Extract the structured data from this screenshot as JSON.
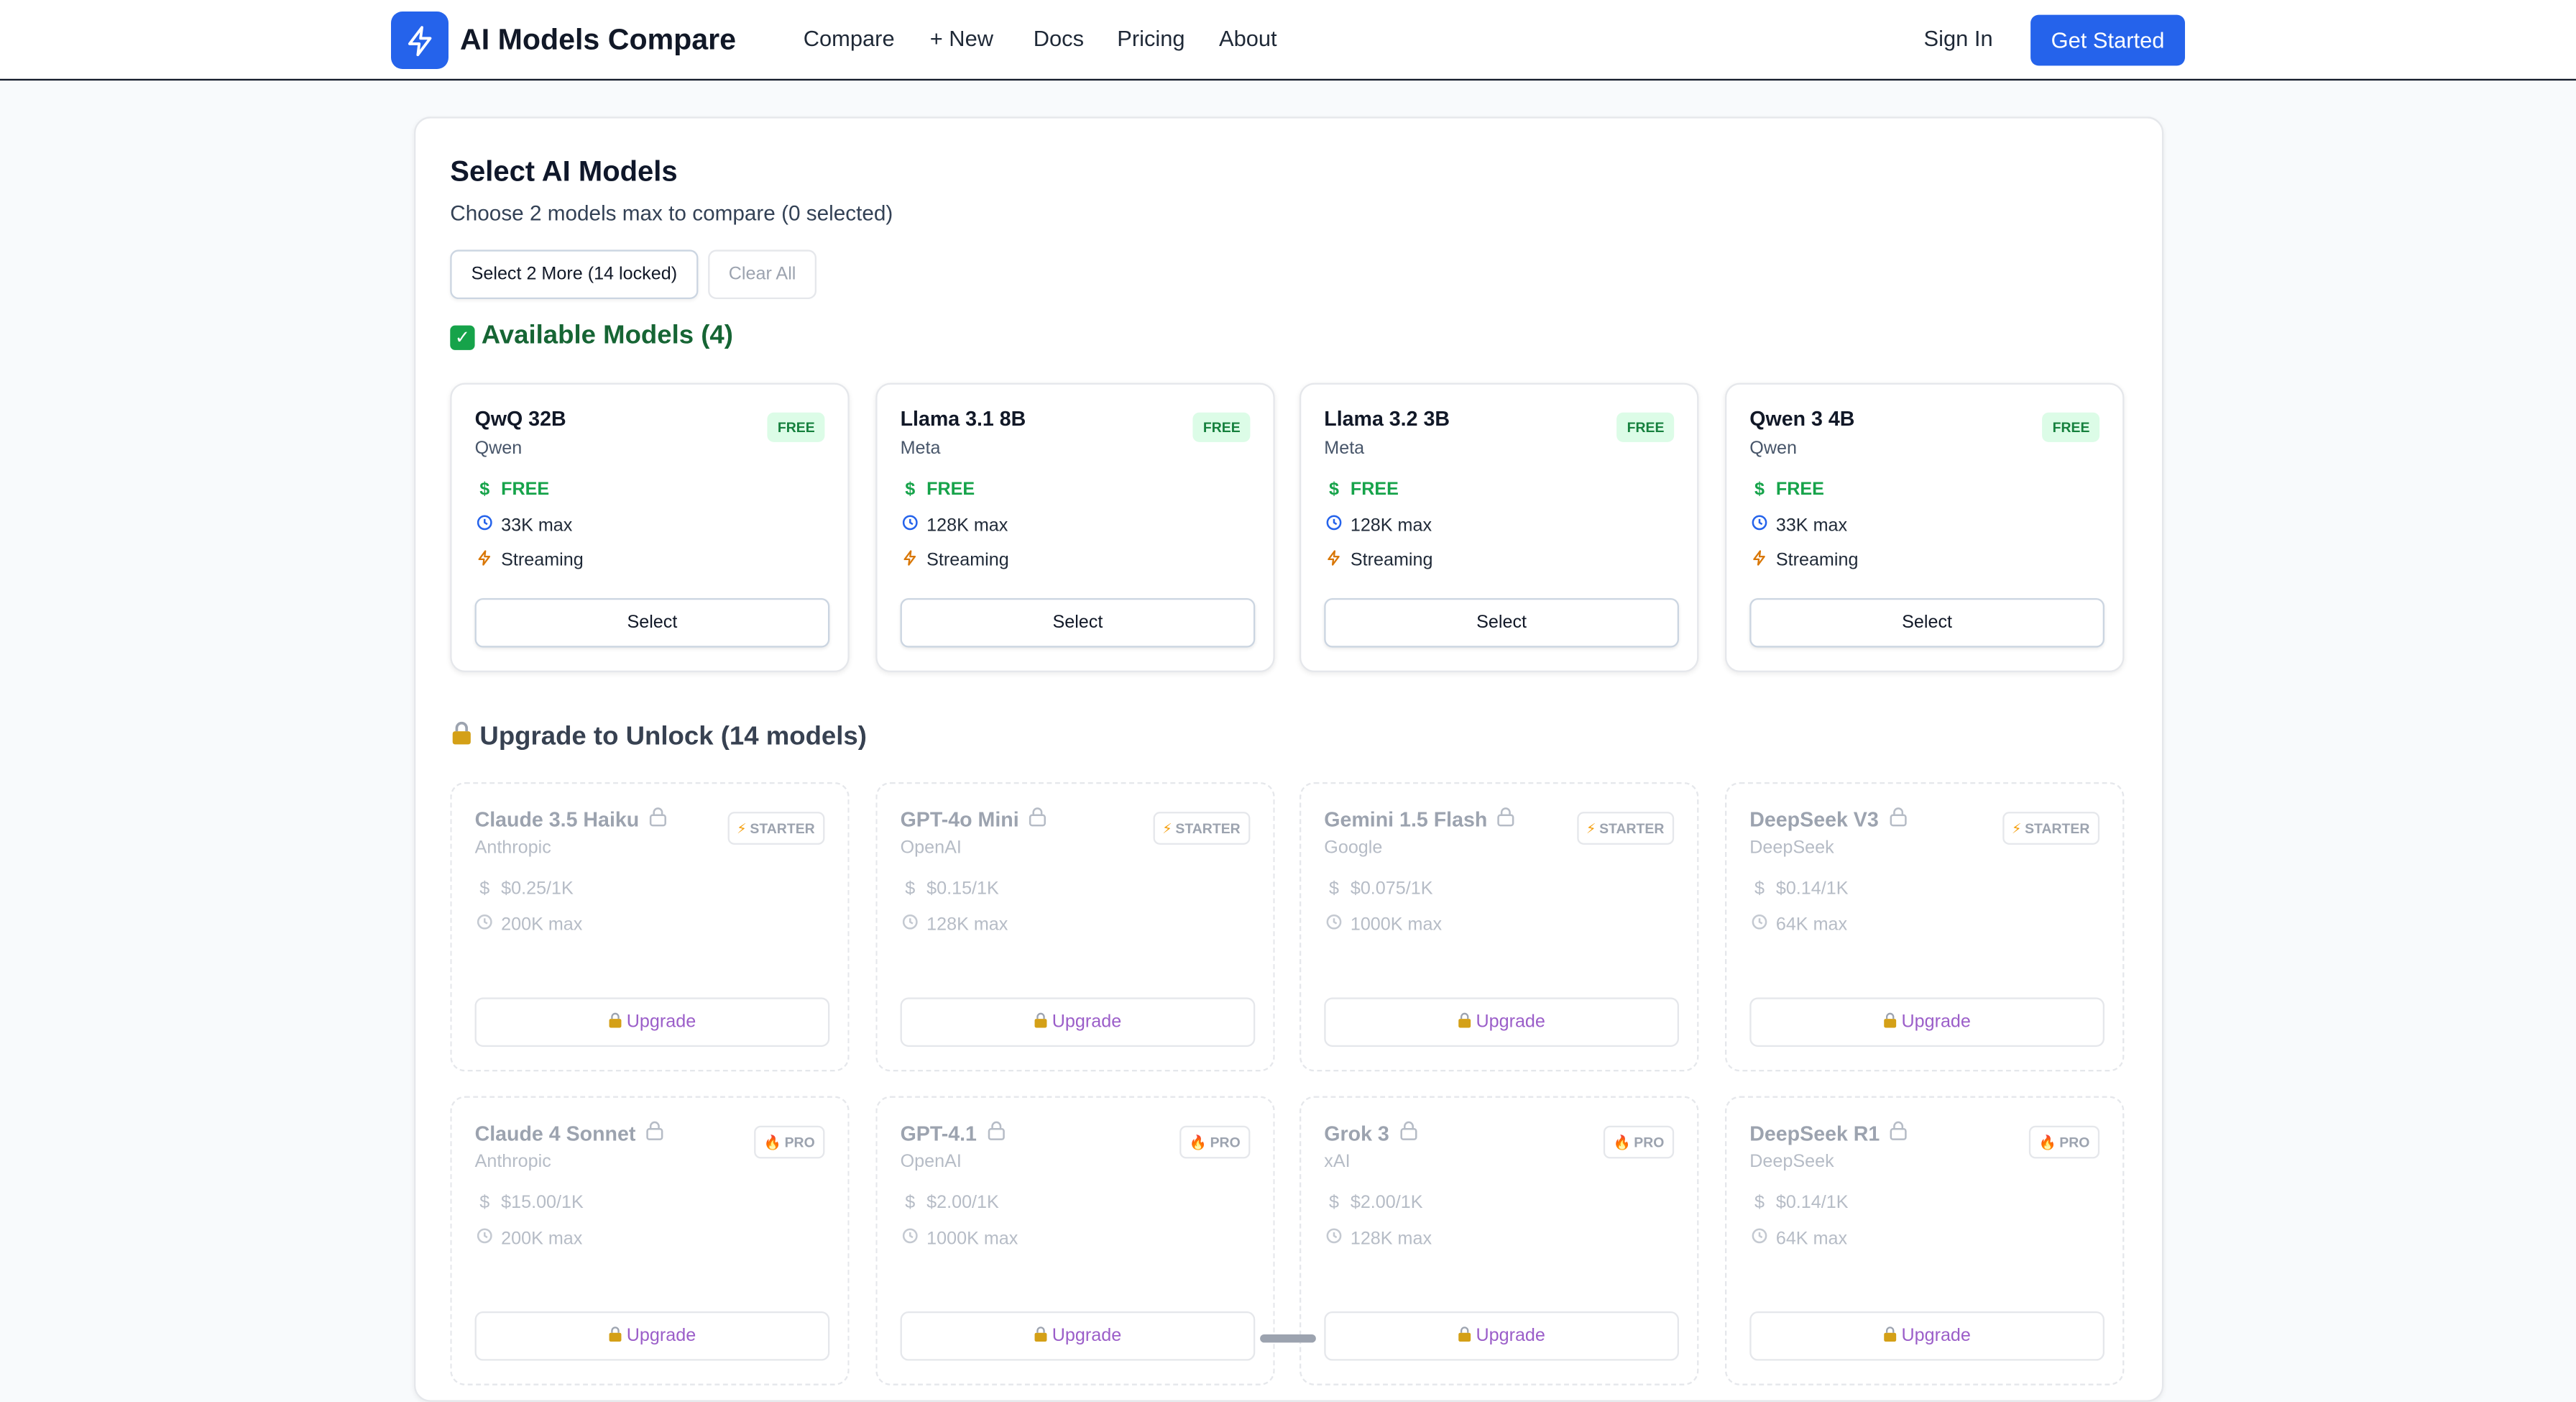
{
  "brand": {
    "name": "AI Models Compare"
  },
  "nav": {
    "compare": "Compare",
    "new": "+ New",
    "docs": "Docs",
    "pricing": "Pricing",
    "about": "About",
    "sign_in": "Sign In",
    "get_started": "Get Started"
  },
  "header": {
    "title": "Select AI Models",
    "subtitle": "Choose 2 models max to compare (0 selected)",
    "select_more": "Select 2 More (14 locked)",
    "clear_all": "Clear All"
  },
  "available": {
    "heading": "Available Models (4)",
    "models": [
      {
        "name": "QwQ 32B",
        "provider": "Qwen",
        "badge": "FREE",
        "price": "FREE",
        "context": "33K max",
        "feature": "Streaming",
        "button": "Select"
      },
      {
        "name": "Llama 3.1 8B",
        "provider": "Meta",
        "badge": "FREE",
        "price": "FREE",
        "context": "128K max",
        "feature": "Streaming",
        "button": "Select"
      },
      {
        "name": "Llama 3.2 3B",
        "provider": "Meta",
        "badge": "FREE",
        "price": "FREE",
        "context": "128K max",
        "feature": "Streaming",
        "button": "Select"
      },
      {
        "name": "Qwen 3 4B",
        "provider": "Qwen",
        "badge": "FREE",
        "price": "FREE",
        "context": "33K max",
        "feature": "Streaming",
        "button": "Select"
      }
    ]
  },
  "locked": {
    "heading": "Upgrade to Unlock (14 models)",
    "models": [
      {
        "name": "Claude 3.5 Haiku",
        "provider": "Anthropic",
        "badge": "STARTER",
        "price": "$0.25/1K",
        "context": "200K max",
        "button": "Upgrade"
      },
      {
        "name": "GPT-4o Mini",
        "provider": "OpenAI",
        "badge": "STARTER",
        "price": "$0.15/1K",
        "context": "128K max",
        "button": "Upgrade"
      },
      {
        "name": "Gemini 1.5 Flash",
        "provider": "Google",
        "badge": "STARTER",
        "price": "$0.075/1K",
        "context": "1000K max",
        "button": "Upgrade"
      },
      {
        "name": "DeepSeek V3",
        "provider": "DeepSeek",
        "badge": "STARTER",
        "price": "$0.14/1K",
        "context": "64K max",
        "button": "Upgrade"
      },
      {
        "name": "Claude 4 Sonnet",
        "provider": "Anthropic",
        "badge": "PRO",
        "price": "$15.00/1K",
        "context": "200K max",
        "button": "Upgrade"
      },
      {
        "name": "GPT-4.1",
        "provider": "OpenAI",
        "badge": "PRO",
        "price": "$2.00/1K",
        "context": "1000K max",
        "button": "Upgrade"
      },
      {
        "name": "Grok 3",
        "provider": "xAI",
        "badge": "PRO",
        "price": "$2.00/1K",
        "context": "128K max",
        "button": "Upgrade"
      },
      {
        "name": "DeepSeek R1",
        "provider": "DeepSeek",
        "badge": "PRO",
        "price": "$0.14/1K",
        "context": "64K max",
        "button": "Upgrade"
      }
    ]
  },
  "colors": {
    "accent": "#2563eb",
    "free_green": "#16a34a",
    "upgrade_purple": "#9b5ec9"
  }
}
